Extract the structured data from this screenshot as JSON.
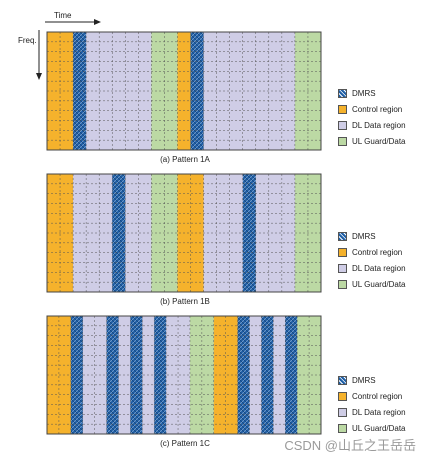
{
  "axes": {
    "time_label": "Time",
    "freq_label": "Freq."
  },
  "colors": {
    "dmrs": "#1f5fa6",
    "control": "#f5b22c",
    "dl": "#cfcde6",
    "ul": "#bcd9a4",
    "grid_line": "#555555",
    "border": "#444444"
  },
  "legend_items": [
    {
      "key": "dmrs",
      "label": "DMRS"
    },
    {
      "key": "control",
      "label": "Control region"
    },
    {
      "key": "dl",
      "label": "DL Data region"
    },
    {
      "key": "ul",
      "label": "UL Guard/Data"
    }
  ],
  "patterns": [
    {
      "caption": "(a) Pattern 1A",
      "columns": [
        "C",
        "C",
        "D",
        "L",
        "L",
        "L",
        "L",
        "L",
        "U",
        "U",
        "C",
        "D",
        "L",
        "L",
        "L",
        "L",
        "L",
        "L",
        "L",
        "U",
        "U"
      ]
    },
    {
      "caption": "(b) Pattern 1B",
      "columns": [
        "C",
        "C",
        "L",
        "L",
        "L",
        "D",
        "L",
        "L",
        "U",
        "U",
        "C",
        "C",
        "L",
        "L",
        "L",
        "D",
        "L",
        "L",
        "L",
        "U",
        "U"
      ]
    },
    {
      "caption": "(c) Pattern 1C",
      "columns": [
        "C",
        "C",
        "D",
        "L",
        "L",
        "D",
        "L",
        "D",
        "L",
        "D",
        "L",
        "L",
        "U",
        "U",
        "C",
        "C",
        "D",
        "L",
        "D",
        "L",
        "D",
        "U",
        "U"
      ]
    }
  ],
  "watermark": "CSDN @山丘之王岳岳"
}
